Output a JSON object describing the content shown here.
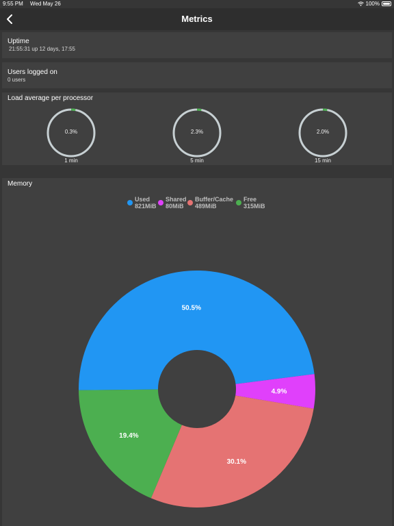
{
  "status": {
    "time": "9:55 PM",
    "date": "Wed May 26",
    "battery": "100%"
  },
  "nav": {
    "title": "Metrics",
    "back_icon": "chevron-left-icon"
  },
  "uptime": {
    "title": "Uptime",
    "value": "21:55:31 up 12 days, 17:55"
  },
  "users": {
    "title": "Users logged on",
    "value": "0 users"
  },
  "load": {
    "title": "Load average per processor",
    "gauges": [
      {
        "value": "0.3%",
        "label": "1 min",
        "fraction": 0.003
      },
      {
        "value": "2.3%",
        "label": "5 min",
        "fraction": 0.023
      },
      {
        "value": "2.0%",
        "label": "15 min",
        "fraction": 0.02
      }
    ]
  },
  "memory": {
    "title": "Memory"
  },
  "chart_data": {
    "type": "pie",
    "donut": true,
    "legend_position": "top-center",
    "slices": [
      {
        "name": "Used",
        "size": "821MiB",
        "percent": 50.5,
        "label": "50.5%",
        "color": "#2196F3"
      },
      {
        "name": "Shared",
        "size": "80MiB",
        "percent": 4.9,
        "label": "4.9%",
        "color": "#E040FB"
      },
      {
        "name": "Buffer/Cache",
        "size": "489MiB",
        "percent": 30.1,
        "label": "30.1%",
        "color": "#E57373"
      },
      {
        "name": "Free",
        "size": "315MiB",
        "percent": 19.4,
        "label": "19.4%",
        "color": "#4CAF50"
      }
    ]
  },
  "colors": {
    "background": "#363636",
    "card": "#404040",
    "gauge_track": "#c7d0d3",
    "gauge_fill": "#4CAF50"
  }
}
